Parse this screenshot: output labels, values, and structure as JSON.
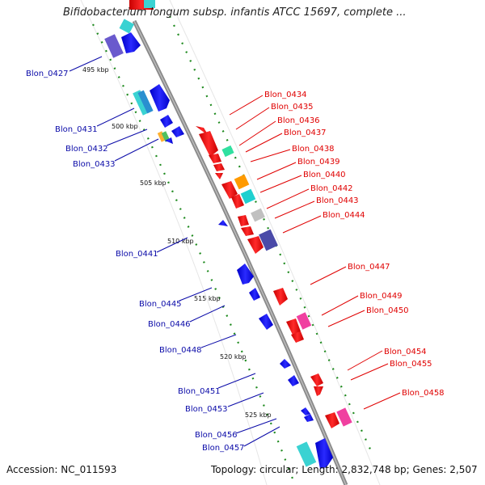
{
  "title": "Bifidobacterium longum subsp. infantis ATCC 15697, complete ...",
  "accession": "Accession: NC_011593",
  "summary": "Topology: circular; Length: 2,832,748 bp; Genes: 2,507",
  "colors": {
    "forward_label": "#0a0aa8",
    "reverse_label": "#e00000",
    "backbone": "#8a8a8a",
    "dots": "#1e8a1e"
  },
  "ticks": [
    {
      "label": "495 kbp",
      "kbp": 495
    },
    {
      "label": "500 kbp",
      "kbp": 500
    },
    {
      "label": "505 kbp",
      "kbp": 505
    },
    {
      "label": "510 kbp",
      "kbp": 510
    },
    {
      "label": "515 kbp",
      "kbp": 515
    },
    {
      "label": "520 kbp",
      "kbp": 520
    },
    {
      "label": "525 kbp",
      "kbp": 525
    }
  ],
  "forward_genes": [
    {
      "name": "Blon_0427"
    },
    {
      "name": "Blon_0431"
    },
    {
      "name": "Blon_0432"
    },
    {
      "name": "Blon_0433"
    },
    {
      "name": "Blon_0441"
    },
    {
      "name": "Blon_0445"
    },
    {
      "name": "Blon_0446"
    },
    {
      "name": "Blon_0448"
    },
    {
      "name": "Blon_0451"
    },
    {
      "name": "Blon_0453"
    },
    {
      "name": "Blon_0456"
    },
    {
      "name": "Blon_0457"
    }
  ],
  "reverse_genes": [
    {
      "name": "Blon_0434"
    },
    {
      "name": "Blon_0435"
    },
    {
      "name": "Blon_0436"
    },
    {
      "name": "Blon_0437"
    },
    {
      "name": "Blon_0438"
    },
    {
      "name": "Blon_0439"
    },
    {
      "name": "Blon_0440"
    },
    {
      "name": "Blon_0442"
    },
    {
      "name": "Blon_0443"
    },
    {
      "name": "Blon_0444"
    },
    {
      "name": "Blon_0447"
    },
    {
      "name": "Blon_0449"
    },
    {
      "name": "Blon_0450"
    },
    {
      "name": "Blon_0454"
    },
    {
      "name": "Blon_0455"
    },
    {
      "name": "Blon_0458"
    }
  ]
}
